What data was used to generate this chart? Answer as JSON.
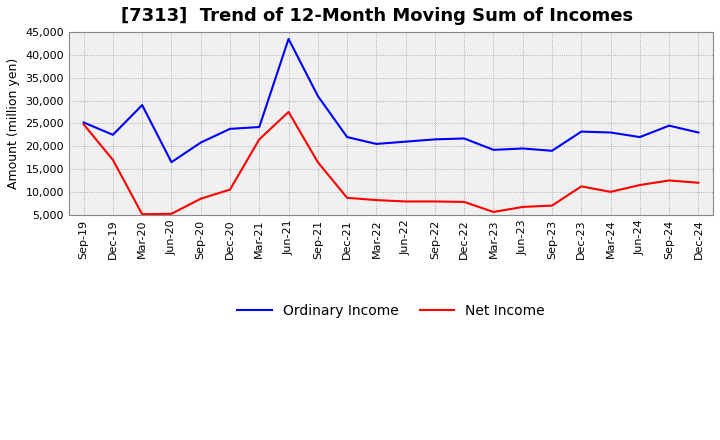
{
  "title": "[7313]  Trend of 12-Month Moving Sum of Incomes",
  "ylabel": "Amount (million yen)",
  "x_labels": [
    "Sep-19",
    "Dec-19",
    "Mar-20",
    "Jun-20",
    "Sep-20",
    "Dec-20",
    "Mar-21",
    "Jun-21",
    "Sep-21",
    "Dec-21",
    "Mar-22",
    "Jun-22",
    "Sep-22",
    "Dec-22",
    "Mar-23",
    "Jun-23",
    "Sep-23",
    "Dec-23",
    "Mar-24",
    "Jun-24",
    "Sep-24",
    "Dec-24"
  ],
  "ordinary_income": [
    25200,
    22500,
    29000,
    16500,
    20800,
    23800,
    24200,
    43500,
    31000,
    22000,
    20500,
    21000,
    21500,
    21700,
    19200,
    19500,
    19000,
    23200,
    23000,
    22000,
    24500,
    23000
  ],
  "net_income": [
    24800,
    17000,
    5100,
    5200,
    8500,
    10500,
    21500,
    27500,
    16500,
    8700,
    8200,
    7900,
    7900,
    7800,
    5600,
    6700,
    7000,
    11200,
    10000,
    11500,
    12500,
    12000
  ],
  "ordinary_color": "#0000ff",
  "net_color": "#ff0000",
  "ylim": [
    5000,
    45000
  ],
  "yticks": [
    5000,
    10000,
    15000,
    20000,
    25000,
    30000,
    35000,
    40000,
    45000
  ],
  "background_color": "#ffffff",
  "plot_bg_color": "#f0f0f0",
  "grid_color": "#888888",
  "title_fontsize": 13,
  "axis_fontsize": 9,
  "tick_fontsize": 8,
  "legend_labels": [
    "Ordinary Income",
    "Net Income"
  ]
}
